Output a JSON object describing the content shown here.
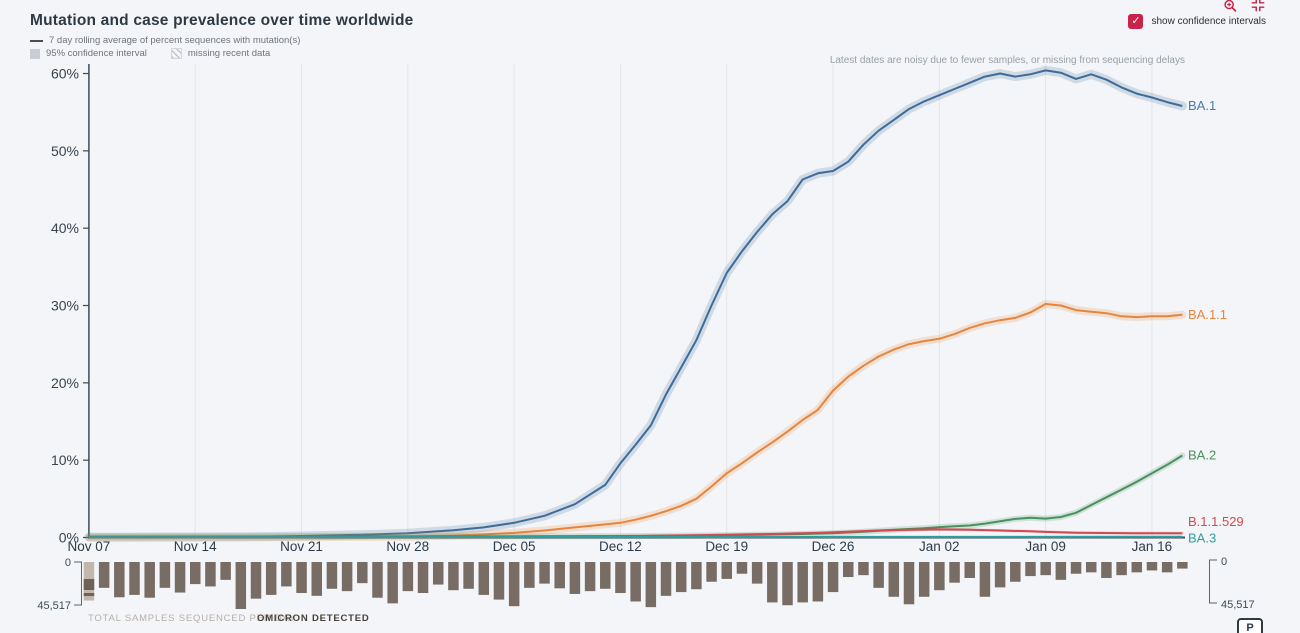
{
  "header": {
    "title": "Mutation and case prevalence over time worldwide",
    "legend": {
      "rolling_avg": "7 day rolling average of percent sequences with mutation(s)",
      "confidence": "95% confidence interval",
      "missing": "missing recent data"
    }
  },
  "controls": {
    "show_ci_label": "show confidence intervals",
    "checked": true,
    "check_glyph": "✓",
    "accent": "#c8234a",
    "icons": [
      "zoom-in-icon",
      "compress-icon"
    ]
  },
  "annotation": "Latest dates are noisy due to fewer samples, or missing from sequencing delays",
  "chart_data": {
    "type": "line",
    "title": "Mutation and case prevalence over time worldwide",
    "x_unit": "days since Nov 07",
    "x_tick_days": [
      0,
      7,
      14,
      21,
      28,
      35,
      42,
      49,
      56,
      63,
      70
    ],
    "x_tick_labels": [
      "Nov 07",
      "Nov 14",
      "Nov 21",
      "Nov 28",
      "Dec 05",
      "Dec 12",
      "Dec 19",
      "Dec 26",
      "Jan 02",
      "Jan 09",
      "Jan 16"
    ],
    "ylim": [
      0,
      60
    ],
    "y_ticks": [
      "0%",
      "10%",
      "20%",
      "30%",
      "40%",
      "50%",
      "60%"
    ],
    "grid": "weekly-vertical",
    "legend_position": "top-left",
    "series": [
      {
        "name": "BA.1",
        "color": "#3e6c9a",
        "label_color": "#4a7aab",
        "band": 9,
        "points": [
          [
            0,
            0.05
          ],
          [
            7,
            0.07
          ],
          [
            11,
            0.1
          ],
          [
            14,
            0.2
          ],
          [
            18,
            0.35
          ],
          [
            21,
            0.55
          ],
          [
            24,
            0.95
          ],
          [
            26,
            1.3
          ],
          [
            28,
            1.9
          ],
          [
            30,
            2.8
          ],
          [
            32,
            4.3
          ],
          [
            34,
            6.8
          ],
          [
            35,
            9.6
          ],
          [
            36,
            12
          ],
          [
            37,
            14.5
          ],
          [
            38,
            18.5
          ],
          [
            39,
            22
          ],
          [
            40,
            25.5
          ],
          [
            41,
            30
          ],
          [
            42,
            34.2
          ],
          [
            43,
            37
          ],
          [
            44,
            39.5
          ],
          [
            45,
            41.8
          ],
          [
            46,
            43.5
          ],
          [
            47,
            46.3
          ],
          [
            48,
            47.1
          ],
          [
            49,
            47.4
          ],
          [
            50,
            48.6
          ],
          [
            51,
            50.8
          ],
          [
            52,
            52.6
          ],
          [
            53,
            54
          ],
          [
            54,
            55.4
          ],
          [
            55,
            56.4
          ],
          [
            56,
            57.2
          ],
          [
            57,
            58
          ],
          [
            58,
            58.8
          ],
          [
            59,
            59.6
          ],
          [
            60,
            60
          ],
          [
            61,
            59.6
          ],
          [
            62,
            59.9
          ],
          [
            63,
            60.4
          ],
          [
            64,
            60.1
          ],
          [
            65,
            59.3
          ],
          [
            66,
            59.9
          ],
          [
            67,
            59.2
          ],
          [
            68,
            58.2
          ],
          [
            69,
            57.4
          ],
          [
            70,
            56.9
          ],
          [
            71,
            56.3
          ],
          [
            72,
            55.8
          ]
        ]
      },
      {
        "name": "BA.1.1",
        "color": "#e6853e",
        "label_color": "#e6853e",
        "band": 8,
        "points": [
          [
            0,
            0.03
          ],
          [
            14,
            0.05
          ],
          [
            18,
            0.08
          ],
          [
            21,
            0.12
          ],
          [
            24,
            0.25
          ],
          [
            26,
            0.4
          ],
          [
            28,
            0.6
          ],
          [
            30,
            0.9
          ],
          [
            32,
            1.3
          ],
          [
            34,
            1.7
          ],
          [
            35,
            1.9
          ],
          [
            36,
            2.3
          ],
          [
            37,
            2.8
          ],
          [
            38,
            3.4
          ],
          [
            39,
            4.1
          ],
          [
            40,
            5
          ],
          [
            41,
            6.6
          ],
          [
            42,
            8.3
          ],
          [
            43,
            9.6
          ],
          [
            44,
            11
          ],
          [
            45,
            12.3
          ],
          [
            46,
            13.7
          ],
          [
            47,
            15.2
          ],
          [
            48,
            16.5
          ],
          [
            49,
            19
          ],
          [
            50,
            20.8
          ],
          [
            51,
            22.2
          ],
          [
            52,
            23.4
          ],
          [
            53,
            24.3
          ],
          [
            54,
            25
          ],
          [
            55,
            25.4
          ],
          [
            56,
            25.7
          ],
          [
            57,
            26.3
          ],
          [
            58,
            27.1
          ],
          [
            59,
            27.7
          ],
          [
            60,
            28.1
          ],
          [
            61,
            28.4
          ],
          [
            62,
            29.1
          ],
          [
            63,
            30.2
          ],
          [
            64,
            30
          ],
          [
            65,
            29.4
          ],
          [
            66,
            29.2
          ],
          [
            67,
            29
          ],
          [
            68,
            28.6
          ],
          [
            69,
            28.5
          ],
          [
            70,
            28.6
          ],
          [
            71,
            28.6
          ],
          [
            72,
            28.8
          ]
        ]
      },
      {
        "name": "BA.2",
        "color": "#47925d",
        "label_color": "#47925d",
        "band": 6,
        "points": [
          [
            0,
            0.12
          ],
          [
            30,
            0.15
          ],
          [
            35,
            0.18
          ],
          [
            40,
            0.25
          ],
          [
            44,
            0.35
          ],
          [
            47,
            0.45
          ],
          [
            49,
            0.55
          ],
          [
            51,
            0.75
          ],
          [
            53,
            1
          ],
          [
            55,
            1.2
          ],
          [
            56,
            1.35
          ],
          [
            57,
            1.45
          ],
          [
            58,
            1.55
          ],
          [
            59,
            1.8
          ],
          [
            60,
            2.1
          ],
          [
            61,
            2.4
          ],
          [
            62,
            2.55
          ],
          [
            63,
            2.45
          ],
          [
            64,
            2.65
          ],
          [
            65,
            3.2
          ],
          [
            66,
            4.2
          ],
          [
            67,
            5.2
          ],
          [
            68,
            6.2
          ],
          [
            69,
            7.2
          ],
          [
            70,
            8.3
          ],
          [
            71,
            9.4
          ],
          [
            72,
            10.6
          ]
        ]
      },
      {
        "name": "B.1.1.529",
        "color": "#cf4a51",
        "label_color": "#cf4a51",
        "band": 3,
        "points": [
          [
            0,
            0.08
          ],
          [
            28,
            0.12
          ],
          [
            35,
            0.18
          ],
          [
            40,
            0.28
          ],
          [
            42,
            0.35
          ],
          [
            45,
            0.45
          ],
          [
            48,
            0.6
          ],
          [
            50,
            0.75
          ],
          [
            52,
            0.9
          ],
          [
            54,
            1
          ],
          [
            56,
            1.05
          ],
          [
            58,
            1
          ],
          [
            60,
            0.9
          ],
          [
            62,
            0.8
          ],
          [
            63,
            0.72
          ],
          [
            65,
            0.62
          ],
          [
            67,
            0.58
          ],
          [
            69,
            0.55
          ],
          [
            72,
            0.55
          ]
        ]
      },
      {
        "name": "BA.3",
        "color": "#2f9e9d",
        "label_color": "#2f9e9d",
        "band": 2,
        "points": [
          [
            0,
            0.05
          ],
          [
            20,
            0.05
          ],
          [
            40,
            0.06
          ],
          [
            56,
            0.08
          ],
          [
            72,
            0.1
          ]
        ]
      }
    ]
  },
  "samples_chart": {
    "type": "bar",
    "bar_color": "#776d64",
    "first_bar_color": "#c2b7ad",
    "axis_min": "0",
    "axis_max": "45,517",
    "caption_total": "TOTAL SAMPLES SEQUENCED PER DAY",
    "caption_omicron": "OMICRON DETECTED",
    "max_value": 45517,
    "values": [
      0.82,
      0.55,
      0.75,
      0.7,
      0.76,
      0.55,
      0.65,
      0.47,
      0.52,
      0.38,
      1.0,
      0.78,
      0.7,
      0.52,
      0.66,
      0.72,
      0.57,
      0.62,
      0.45,
      0.76,
      0.88,
      0.62,
      0.66,
      0.48,
      0.6,
      0.57,
      0.7,
      0.8,
      0.94,
      0.55,
      0.46,
      0.56,
      0.68,
      0.62,
      0.57,
      0.66,
      0.84,
      0.96,
      0.72,
      0.64,
      0.58,
      0.42,
      0.36,
      0.25,
      0.46,
      0.86,
      0.92,
      0.86,
      0.84,
      0.64,
      0.32,
      0.28,
      0.55,
      0.74,
      0.9,
      0.74,
      0.6,
      0.44,
      0.34,
      0.74,
      0.54,
      0.42,
      0.3,
      0.28,
      0.38,
      0.25,
      0.22,
      0.34,
      0.28,
      0.22,
      0.18,
      0.22,
      0.14
    ]
  },
  "footer": {
    "p_button_label": "P"
  }
}
